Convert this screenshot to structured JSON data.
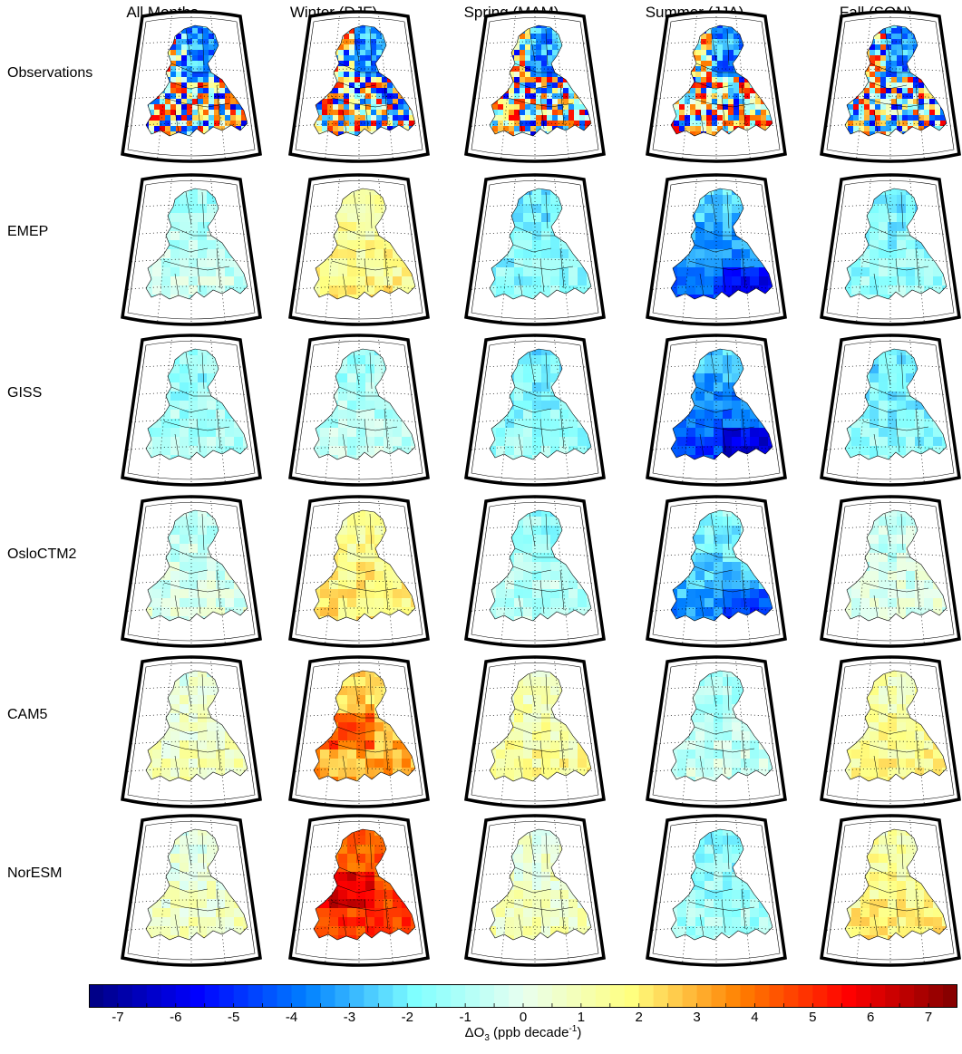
{
  "columns": [
    "All Months",
    "Winter (DJF)",
    "Spring (MAM)",
    "Summer (JJA)",
    "Fall (SON)"
  ],
  "rows": [
    "Observations",
    "EMEP",
    "GISS",
    "OsloCTM2",
    "CAM5",
    "NorESM"
  ],
  "colorbar": {
    "min": -7.5,
    "max": 7.5,
    "ticks": [
      "-7",
      "-6",
      "-5",
      "-4",
      "-3",
      "-2",
      "-1",
      "0",
      "1",
      "2",
      "3",
      "4",
      "5",
      "6",
      "7"
    ],
    "tick_values": [
      -7,
      -6,
      -5,
      -4,
      -3,
      -2,
      -1,
      0,
      1,
      2,
      3,
      4,
      5,
      6,
      7
    ],
    "label_main": "ΔO",
    "label_sub": "3",
    "label_units": " (ppb decade",
    "label_sup": "-1",
    "label_close": ")",
    "colors": [
      "#00007f",
      "#0000ff",
      "#007fff",
      "#7fffff",
      "#e8fff0",
      "#ffff7f",
      "#ff7f00",
      "#ff0000",
      "#7f0000"
    ]
  },
  "panels": [
    [
      {
        "dominant": "mixed-observed"
      },
      {
        "dominant": "mixed-observed"
      },
      {
        "dominant": "mixed-observed"
      },
      {
        "dominant": "mixed-observed"
      },
      {
        "dominant": "mixed-observed"
      }
    ],
    [
      {
        "base": -0.8
      },
      {
        "base": 1.5
      },
      {
        "base": -1.8
      },
      {
        "base": -3.5
      },
      {
        "base": -1.6
      }
    ],
    [
      {
        "base": -1.2
      },
      {
        "base": -0.9
      },
      {
        "base": -1.6
      },
      {
        "base": -3.8
      },
      {
        "base": -1.8
      }
    ],
    [
      {
        "base": -0.4
      },
      {
        "base": 1.8
      },
      {
        "base": -1.0
      },
      {
        "base": -2.6
      },
      {
        "base": -0.3
      }
    ],
    [
      {
        "base": 0.6
      },
      {
        "base": 2.8
      },
      {
        "base": 1.2
      },
      {
        "base": -0.8
      },
      {
        "base": 1.4
      }
    ],
    [
      {
        "base": 0.5
      },
      {
        "base": 4.5
      },
      {
        "base": 0.6
      },
      {
        "base": -1.4
      },
      {
        "base": 1.6
      }
    ]
  ]
}
